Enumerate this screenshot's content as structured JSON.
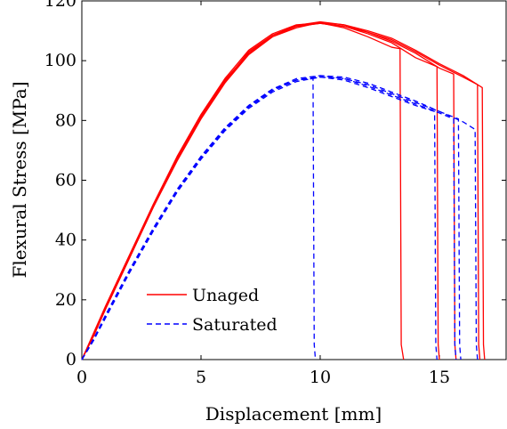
{
  "chart_data": {
    "type": "line",
    "title": "",
    "xlabel": "Displacement [mm]",
    "ylabel": "Flexural Stress [MPa]",
    "xlim": [
      0,
      17.8
    ],
    "ylim": [
      0,
      120
    ],
    "xticks": [
      0,
      5,
      10,
      15
    ],
    "yticks": [
      0,
      20,
      40,
      60,
      80,
      100,
      120
    ],
    "grid": false,
    "legend_position": "bottom-left",
    "series": [
      {
        "name": "Unaged",
        "color": "#ff0000",
        "dash": "solid",
        "specimens": [
          {
            "x": [
              0,
              0.5,
              1,
              2,
              3,
              4,
              5,
              6,
              7,
              8,
              9,
              10,
              11,
              12,
              13,
              13.35,
              13.4,
              13.5
            ],
            "y": [
              0,
              9,
              18,
              35,
              52,
              68,
              82,
              94,
              103.5,
              109,
              112,
              112.6,
              111,
              108,
              104.5,
              104,
              5,
              0
            ]
          },
          {
            "x": [
              0,
              0.5,
              1,
              2,
              3,
              4,
              5,
              6,
              7,
              8,
              9,
              10,
              11,
              12,
              13,
              14,
              14.9,
              14.95,
              15.0
            ],
            "y": [
              0,
              8,
              17,
              34,
              51,
              67,
              81,
              93,
              103,
              108.5,
              111.5,
              112.5,
              111.5,
              109,
              106,
              101,
              98,
              5,
              0
            ]
          },
          {
            "x": [
              0,
              0.5,
              1,
              2,
              3,
              4,
              5,
              6,
              7,
              8,
              9,
              10,
              11,
              12,
              13,
              14,
              15,
              15.6,
              15.65,
              15.7
            ],
            "y": [
              0,
              8.5,
              17.5,
              34.5,
              51.5,
              67.5,
              81.5,
              93.5,
              102.5,
              108,
              111,
              112.8,
              112,
              109.5,
              106.5,
              102.5,
              97.5,
              95.5,
              5,
              0
            ]
          },
          {
            "x": [
              0,
              0.5,
              1,
              2,
              3,
              4,
              5,
              6,
              7,
              8,
              9,
              10,
              11,
              12,
              13,
              14,
              15,
              16,
              16.6,
              16.65,
              16.7
            ],
            "y": [
              0,
              8,
              17,
              34,
              51,
              66.5,
              80.5,
              92.5,
              102,
              108,
              111.5,
              112.5,
              111.5,
              109.5,
              107,
              103,
              98.5,
              94.5,
              92,
              5,
              0
            ]
          },
          {
            "x": [
              0,
              0.5,
              1,
              2,
              3,
              4,
              5,
              6,
              7,
              8,
              9,
              10,
              11,
              12,
              13,
              14,
              15,
              16,
              16.8,
              16.85,
              16.9
            ],
            "y": [
              0,
              8.5,
              17,
              34,
              51.5,
              67,
              81,
              93,
              102.5,
              108.5,
              111.8,
              113,
              112,
              110,
              107.5,
              103.5,
              99,
              95,
              91,
              5,
              0
            ]
          }
        ]
      },
      {
        "name": "Saturated",
        "color": "#0000ff",
        "dash": "dashed",
        "specimens": [
          {
            "x": [
              0,
              0.5,
              1,
              2,
              3,
              4,
              5,
              6,
              7,
              8,
              9,
              9.7,
              9.75,
              9.8
            ],
            "y": [
              0,
              7,
              15,
              30,
              44,
              57,
              68,
              77.5,
              85,
              90.5,
              93.5,
              94,
              5,
              0
            ]
          },
          {
            "x": [
              0,
              0.5,
              1,
              2,
              3,
              4,
              5,
              6,
              7,
              8,
              9,
              10,
              11,
              12,
              13,
              14,
              14.8,
              14.85,
              14.9
            ],
            "y": [
              0,
              6.5,
              14.5,
              29.5,
              43.5,
              56.5,
              67.5,
              77,
              84.5,
              90,
              93.5,
              94.5,
              93.5,
              91,
              88,
              85,
              83,
              5,
              0
            ]
          },
          {
            "x": [
              0,
              0.5,
              1,
              2,
              3,
              4,
              5,
              6,
              7,
              8,
              9,
              10,
              11,
              12,
              13,
              14,
              15,
              15.6,
              15.65,
              15.7
            ],
            "y": [
              0,
              7,
              14.5,
              29.5,
              43.5,
              56.5,
              68,
              77.5,
              85,
              90.5,
              94,
              95,
              94,
              91.5,
              88.5,
              85.5,
              82.5,
              80.5,
              5,
              0
            ]
          },
          {
            "x": [
              0,
              0.5,
              1,
              2,
              3,
              4,
              5,
              6,
              7,
              8,
              9,
              10,
              11,
              12,
              13,
              14,
              15,
              15.8,
              15.85,
              15.9
            ],
            "y": [
              0,
              6.5,
              14,
              29,
              43,
              56,
              67,
              76.5,
              84,
              89.5,
              93,
              94.5,
              94,
              92,
              89,
              86,
              83,
              80.5,
              5,
              0
            ]
          },
          {
            "x": [
              0,
              0.5,
              1,
              2,
              3,
              4,
              5,
              6,
              7,
              8,
              9,
              10,
              11,
              12,
              13,
              14,
              15,
              16,
              16.5,
              16.55,
              16.6
            ],
            "y": [
              0,
              7,
              14.5,
              29.5,
              43.5,
              56.5,
              67.5,
              77,
              84.5,
              90,
              93.5,
              95,
              94.5,
              92.5,
              89.5,
              86.5,
              83,
              79.5,
              77,
              5,
              0
            ]
          }
        ]
      }
    ]
  }
}
